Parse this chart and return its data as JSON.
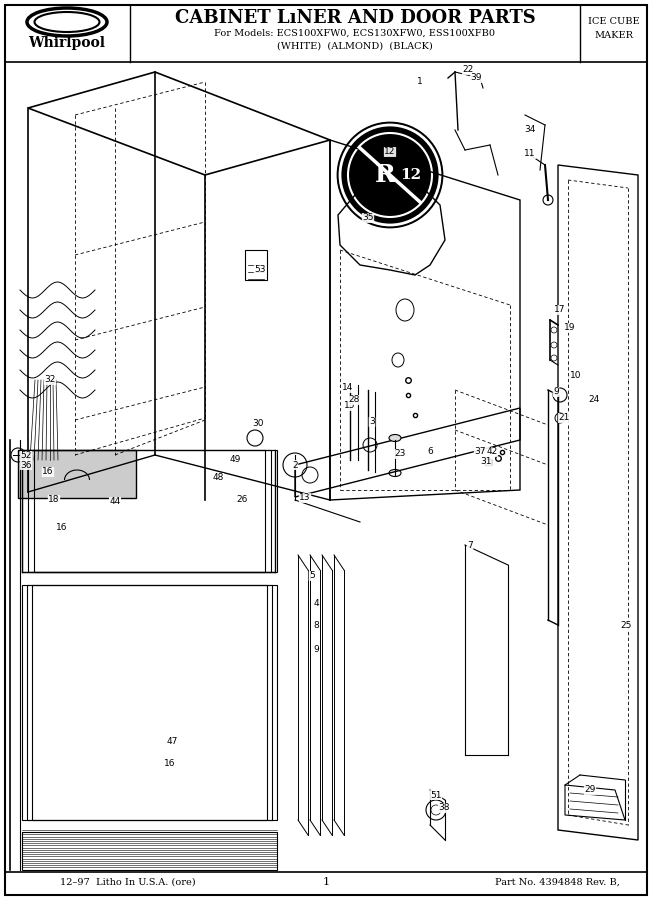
{
  "title": "CABINET LıNER AND DOOR PARTS",
  "title2": "CABINET LINER AND DOOR PARTS",
  "subtitle1": "For Models: ECS100XFW0, ECS130XFW0, ESS100XFB0",
  "subtitle2": "(WHITE)  (ALMOND)  (BLACK)",
  "brand": "Whirlpool",
  "top_right": "ICE CUBE\nMAKER",
  "bottom_left": "12–97  Litho In U.S.A. (ore)",
  "bottom_center": "1",
  "bottom_right": "Part No. 4394848 Rev. B,",
  "bg_color": "#ffffff",
  "border_color": "#000000"
}
